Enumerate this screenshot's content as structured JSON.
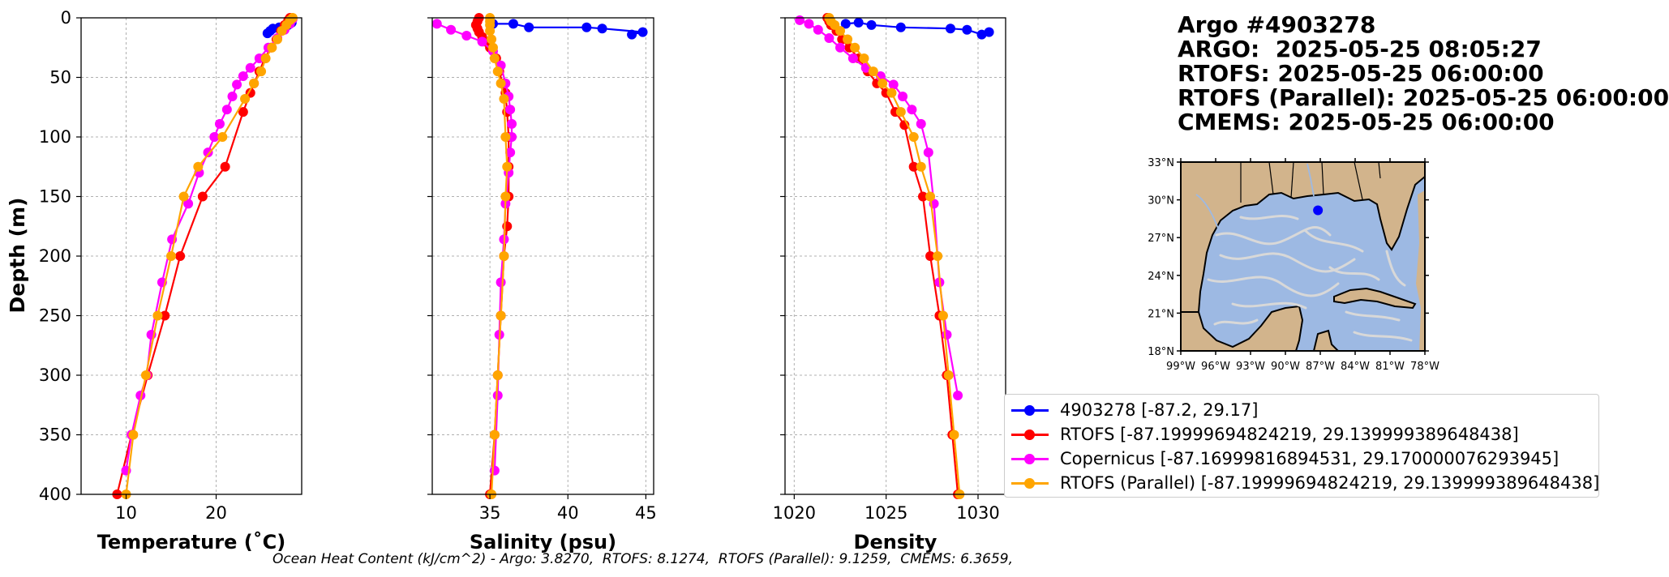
{
  "title": {
    "lines": [
      "Argo #4903278",
      "ARGO:  2025-05-25 08:05:27",
      "RTOFS: 2025-05-25 06:00:00",
      "RTOFS (Parallel): 2025-05-25 06:00:00",
      "CMEMS: 2025-05-25 06:00:00"
    ]
  },
  "footer": "Ocean Heat Content (kJ/cm^2) - Argo: 3.8270,  RTOFS: 8.1274,  RTOFS (Parallel): 9.1259,  CMEMS: 6.3659,",
  "legend": [
    {
      "label": "4903278 [-87.2, 29.17]",
      "color": "#0000ff"
    },
    {
      "label": "RTOFS [-87.19999694824219, 29.139999389648438]",
      "color": "#ff0000"
    },
    {
      "label": "Copernicus [-87.16999816894531, 29.170000076293945]",
      "color": "#ff00ff"
    },
    {
      "label": "RTOFS (Parallel) [-87.19999694824219, 29.139999389648438]",
      "color": "#ffa500"
    }
  ],
  "map": {
    "lat_ticks": [
      "33°N",
      "30°N",
      "27°N",
      "24°N",
      "21°N",
      "18°N"
    ],
    "lon_ticks": [
      "99°W",
      "96°W",
      "93°W",
      "90°W",
      "87°W",
      "84°W",
      "81°W",
      "78°W"
    ],
    "extent": {
      "lon_min": -99,
      "lon_max": -78,
      "lat_min": 18,
      "lat_max": 33
    },
    "float_position": {
      "lon": -87.2,
      "lat": 29.17
    },
    "land_color": "#d2b48c",
    "ocean_color": "#9db9e3",
    "float_color": "#0000ff"
  },
  "chart_data": [
    {
      "type": "line",
      "xlabel": "Temperature (˚C)",
      "ylabel": "Depth (m)",
      "xlim": [
        5,
        29.5
      ],
      "ylim": [
        400,
        0
      ],
      "xticks": [
        10,
        20
      ],
      "yticks": [
        0,
        50,
        100,
        150,
        200,
        250,
        300,
        350,
        400
      ],
      "grid": true,
      "series": [
        {
          "name": "4903278 [-87.2, 29.17]",
          "color": "#0000ff",
          "x": [
            28.4,
            28.2,
            28.0,
            27.6,
            27.0,
            26.3,
            26.0,
            25.7
          ],
          "y": [
            4,
            5,
            6,
            7,
            8,
            9,
            11,
            13
          ]
        },
        {
          "name": "RTOFS [-87.19999694824219, 29.139999389648438]",
          "color": "#ff0000",
          "x": [
            28.2,
            28.0,
            27.6,
            27.2,
            26.7,
            26.1,
            25.4,
            24.8,
            24.2,
            23.8,
            23.0,
            21.0,
            18.5,
            16.0,
            14.3,
            12.4,
            10.6,
            9.0
          ],
          "y": [
            0,
            2,
            6,
            11,
            18,
            25,
            34,
            45,
            55,
            63,
            79,
            125,
            150,
            200,
            250,
            300,
            350,
            400
          ]
        },
        {
          "name": "Copernicus [-87.16999816894531, 29.170000076293945]",
          "color": "#ff00ff",
          "x": [
            28.5,
            28.2,
            27.6,
            26.8,
            25.8,
            24.8,
            23.8,
            23.0,
            22.3,
            21.8,
            21.2,
            20.4,
            19.8,
            19.1,
            18.1,
            16.9,
            15.1,
            14.0,
            12.8,
            12.3,
            11.6,
            10.6,
            10.0
          ],
          "y": [
            1,
            5,
            10,
            17,
            25,
            34,
            42,
            49,
            56,
            66,
            77,
            89,
            100,
            113,
            130,
            156,
            186,
            222,
            266,
            300,
            317,
            350,
            380
          ]
        },
        {
          "name": "RTOFS (Parallel) [-87.19999694824219, 29.139999389648438]",
          "color": "#ffa500",
          "x": [
            28.5,
            28.2,
            27.8,
            27.3,
            26.8,
            26.2,
            25.5,
            25.0,
            24.2,
            23.2,
            20.7,
            18.0,
            16.4,
            15.0,
            13.5,
            12.2,
            10.8,
            10.0
          ],
          "y": [
            0,
            2,
            6,
            11,
            18,
            25,
            34,
            45,
            55,
            68,
            100,
            125,
            150,
            200,
            250,
            300,
            350,
            400
          ]
        }
      ]
    },
    {
      "type": "line",
      "xlabel": "Salinity (psu)",
      "ylabel": "",
      "xlim": [
        31.3,
        45.5
      ],
      "ylim": [
        400,
        0
      ],
      "xticks": [
        35,
        40,
        45
      ],
      "yticks": [
        0,
        50,
        100,
        150,
        200,
        250,
        300,
        350,
        400
      ],
      "grid": true,
      "series": [
        {
          "name": "4903278 [-87.2, 29.17]",
          "color": "#0000ff",
          "x": [
            35.2,
            36.5,
            37.5,
            41.2,
            42.2,
            44.8,
            44.1
          ],
          "y": [
            5,
            5,
            8,
            8,
            9,
            12,
            14
          ]
        },
        {
          "name": "RTOFS [-87.19999694824219, 29.139999389648438]",
          "color": "#ff0000",
          "x": [
            34.3,
            34.2,
            34.1,
            34.2,
            34.3,
            34.5,
            34.7,
            35.0,
            35.4,
            35.6,
            35.8,
            36.0,
            36.1,
            36.2,
            36.2,
            36.2,
            36.1,
            35.9,
            35.7,
            35.5,
            35.3,
            35.0
          ],
          "y": [
            0,
            3,
            6,
            9,
            12,
            16,
            20,
            25,
            34,
            45,
            55,
            63,
            79,
            100,
            125,
            150,
            175,
            200,
            250,
            300,
            350,
            400
          ]
        },
        {
          "name": "Copernicus [-87.16999816894531, 29.170000076293945]",
          "color": "#ff00ff",
          "x": [
            31.6,
            32.5,
            33.5,
            34.5,
            35.2,
            35.7,
            36.0,
            36.2,
            36.3,
            36.4,
            36.4,
            36.3,
            36.2,
            36.0,
            35.9,
            35.7,
            35.6,
            35.5,
            35.3
          ],
          "y": [
            5,
            10,
            15,
            20,
            28,
            40,
            55,
            66,
            77,
            89,
            100,
            113,
            130,
            156,
            186,
            222,
            266,
            317,
            380
          ]
        },
        {
          "name": "RTOFS (Parallel) [-87.19999694824219, 29.139999389648438]",
          "color": "#ffa500",
          "x": [
            35.0,
            35.0,
            35.0,
            35.0,
            35.1,
            35.2,
            35.3,
            35.5,
            35.7,
            35.9,
            36.0,
            36.1,
            36.0,
            35.9,
            35.7,
            35.5,
            35.3,
            35.1
          ],
          "y": [
            0,
            3,
            6,
            11,
            18,
            25,
            34,
            45,
            55,
            68,
            100,
            125,
            150,
            200,
            250,
            300,
            350,
            400
          ]
        }
      ]
    },
    {
      "type": "line",
      "xlabel": "Density",
      "ylabel": "",
      "xlim": [
        1019.5,
        1031.5
      ],
      "ylim": [
        400,
        0
      ],
      "xticks": [
        1020,
        1025,
        1030
      ],
      "yticks": [
        0,
        50,
        100,
        150,
        200,
        250,
        300,
        350,
        400
      ],
      "grid": true,
      "series": [
        {
          "name": "4903278 [-87.2, 29.17]",
          "color": "#0000ff",
          "x": [
            1022.8,
            1023.5,
            1024.2,
            1025.8,
            1028.5,
            1029.4,
            1030.2,
            1030.6
          ],
          "y": [
            5,
            4,
            6,
            8,
            9,
            10,
            14,
            12
          ]
        },
        {
          "name": "RTOFS [-87.19999694824219, 29.139999389648438]",
          "color": "#ff0000",
          "x": [
            1021.8,
            1021.9,
            1022.0,
            1022.3,
            1022.6,
            1023.0,
            1023.5,
            1024.0,
            1024.5,
            1025.0,
            1025.5,
            1026.0,
            1026.5,
            1027.0,
            1027.4,
            1027.9,
            1028.3,
            1028.6,
            1028.9
          ],
          "y": [
            0,
            3,
            6,
            11,
            18,
            25,
            34,
            45,
            55,
            63,
            79,
            90,
            125,
            150,
            200,
            250,
            300,
            350,
            400
          ]
        },
        {
          "name": "Copernicus [-87.16999816894531, 29.170000076293945]",
          "color": "#ff00ff",
          "x": [
            1020.3,
            1020.8,
            1021.3,
            1021.9,
            1022.5,
            1023.2,
            1023.9,
            1024.7,
            1025.4,
            1025.9,
            1026.4,
            1026.9,
            1027.3,
            1027.6,
            1027.9,
            1028.3,
            1028.9
          ],
          "y": [
            2,
            5,
            10,
            17,
            25,
            34,
            42,
            49,
            56,
            66,
            77,
            89,
            113,
            156,
            222,
            266,
            317
          ]
        },
        {
          "name": "RTOFS (Parallel) [-87.19999694824219, 29.139999389648438]",
          "color": "#ffa500",
          "x": [
            1021.9,
            1022.0,
            1022.2,
            1022.5,
            1022.9,
            1023.3,
            1023.8,
            1024.3,
            1024.8,
            1025.3,
            1025.8,
            1026.5,
            1026.9,
            1027.4,
            1027.8,
            1028.1,
            1028.4,
            1028.7,
            1029.0
          ],
          "y": [
            0,
            3,
            6,
            11,
            18,
            25,
            34,
            45,
            55,
            63,
            79,
            100,
            125,
            150,
            200,
            250,
            300,
            350,
            400
          ]
        }
      ]
    }
  ]
}
